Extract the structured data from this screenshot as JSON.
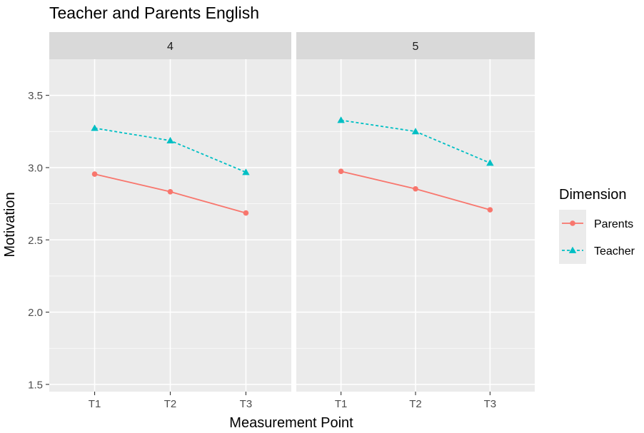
{
  "chart_data": {
    "type": "line",
    "title": "Teacher and Parents English",
    "xlabel": "Measurement Point",
    "ylabel": "Motivation",
    "x": [
      "T1",
      "T2",
      "T3"
    ],
    "ylim": [
      1.45,
      3.75
    ],
    "yticks": [
      1.5,
      2.0,
      2.5,
      3.0,
      3.5
    ],
    "ytick_labels": [
      "1.5",
      "2.0",
      "2.5",
      "3.0",
      "3.5"
    ],
    "grid": true,
    "legend": {
      "title": "Dimension",
      "placement": "right",
      "entries": [
        "Parents",
        "Teacher"
      ]
    },
    "facets": [
      {
        "label": "4",
        "series": [
          {
            "name": "Parents",
            "values": [
              2.955,
              2.833,
              2.686
            ]
          },
          {
            "name": "Teacher",
            "values": [
              3.273,
              3.187,
              2.968
            ]
          }
        ]
      },
      {
        "label": "5",
        "series": [
          {
            "name": "Parents",
            "values": [
              2.974,
              2.853,
              2.708
            ]
          },
          {
            "name": "Teacher",
            "values": [
              3.328,
              3.25,
              3.032
            ]
          }
        ]
      }
    ],
    "colors": {
      "Parents": "#F8766D",
      "Teacher": "#00BFC4",
      "panel_bg": "#EBEBEB",
      "strip_bg": "#D9D9D9",
      "grid": "#FFFFFF"
    }
  }
}
